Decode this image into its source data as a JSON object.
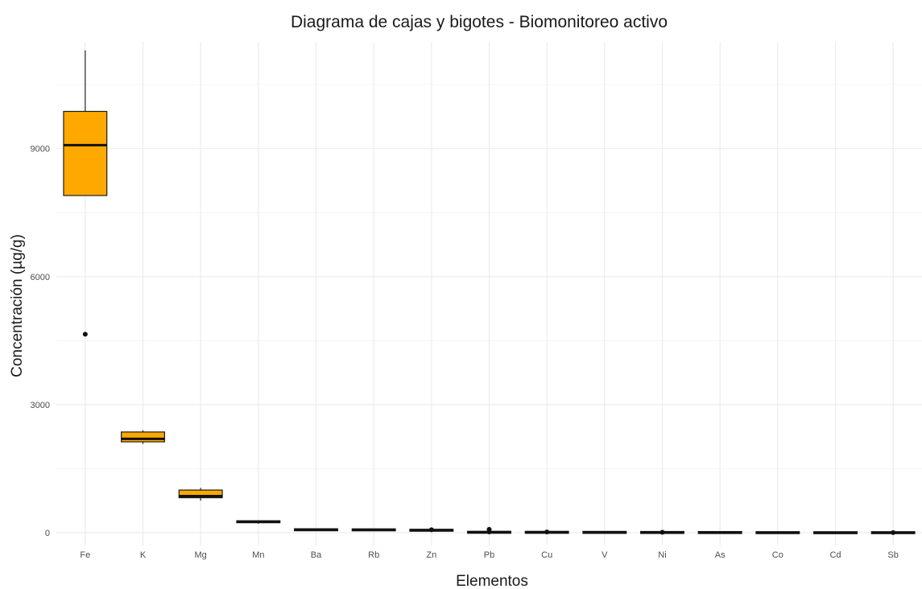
{
  "chart_data": {
    "type": "boxplot",
    "title": "Diagrama de cajas y bigotes - Biomonitoreo activo",
    "xlabel": "Elementos",
    "ylabel": "Concentración (µg/g)",
    "ylim": [
      -300,
      11500
    ],
    "yticks": [
      0,
      3000,
      6000,
      9000
    ],
    "grid": true,
    "legend": "none",
    "box_color": "#FFA900",
    "categories": [
      "Fe",
      "K",
      "Mg",
      "Mn",
      "Ba",
      "Rb",
      "Zn",
      "Pb",
      "Cu",
      "V",
      "Ni",
      "As",
      "Co",
      "Cd",
      "Sb"
    ],
    "boxes": [
      {
        "min": 7900,
        "q1": 7900,
        "median": 9080,
        "q3": 9870,
        "max": 11300,
        "outliers": [
          4650
        ]
      },
      {
        "min": 2080,
        "q1": 2130,
        "median": 2200,
        "q3": 2360,
        "max": 2400,
        "outliers": []
      },
      {
        "min": 750,
        "q1": 820,
        "median": 860,
        "q3": 1000,
        "max": 1050,
        "outliers": []
      },
      {
        "min": 210,
        "q1": 240,
        "median": 255,
        "q3": 275,
        "max": 290,
        "outliers": []
      },
      {
        "min": 60,
        "q1": 65,
        "median": 70,
        "q3": 75,
        "max": 80,
        "outliers": []
      },
      {
        "min": 60,
        "q1": 64,
        "median": 68,
        "q3": 72,
        "max": 76,
        "outliers": []
      },
      {
        "min": 50,
        "q1": 55,
        "median": 58,
        "q3": 62,
        "max": 66,
        "outliers": [
          70
        ]
      },
      {
        "min": 5,
        "q1": 8,
        "median": 10,
        "q3": 14,
        "max": 20,
        "outliers": [
          80,
          20
        ]
      },
      {
        "min": 5,
        "q1": 8,
        "median": 10,
        "q3": 12,
        "max": 15,
        "outliers": [
          18
        ]
      },
      {
        "min": 5,
        "q1": 7,
        "median": 8,
        "q3": 10,
        "max": 12,
        "outliers": []
      },
      {
        "min": 3,
        "q1": 5,
        "median": 6,
        "q3": 8,
        "max": 10,
        "outliers": [
          12
        ]
      },
      {
        "min": 3,
        "q1": 4,
        "median": 5,
        "q3": 6,
        "max": 8,
        "outliers": []
      },
      {
        "min": 1,
        "q1": 2,
        "median": 2,
        "q3": 3,
        "max": 4,
        "outliers": []
      },
      {
        "min": 0,
        "q1": 0.5,
        "median": 1,
        "q3": 1.5,
        "max": 2,
        "outliers": []
      },
      {
        "min": 0,
        "q1": 1,
        "median": 2,
        "q3": 3,
        "max": 4,
        "outliers": [
          5
        ]
      }
    ]
  }
}
